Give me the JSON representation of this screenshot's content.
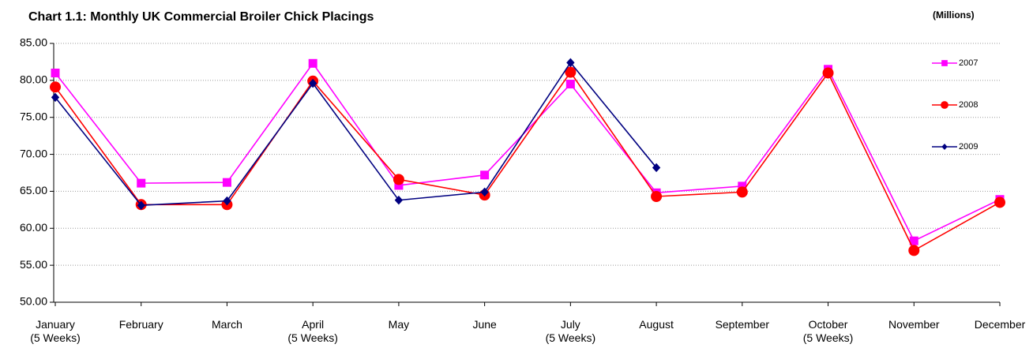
{
  "chart_data": {
    "type": "line",
    "title": "Chart 1.1: Monthly UK Commercial Broiler Chick Placings",
    "units_label": "(Millions)",
    "categories": [
      "January\n(5 Weeks)",
      "February",
      "March",
      "April\n(5 Weeks)",
      "May",
      "June",
      "July\n(5 Weeks)",
      "August",
      "September",
      "October\n(5 Weeks)",
      "November",
      "December"
    ],
    "series": [
      {
        "name": "2007",
        "color": "#ff00ff",
        "marker": "square",
        "values": [
          81.0,
          66.1,
          66.2,
          82.3,
          65.8,
          67.2,
          79.5,
          64.8,
          65.7,
          81.5,
          58.3,
          63.9
        ]
      },
      {
        "name": "2008",
        "color": "#ff0000",
        "marker": "circle",
        "values": [
          79.1,
          63.2,
          63.2,
          79.9,
          66.6,
          64.5,
          81.1,
          64.3,
          64.9,
          81.0,
          57.0,
          63.5
        ]
      },
      {
        "name": "2009",
        "color": "#000080",
        "marker": "diamond",
        "values": [
          77.7,
          63.1,
          63.7,
          79.6,
          63.8,
          64.9,
          82.4,
          68.2,
          null,
          null,
          null,
          null
        ]
      }
    ],
    "ylim": [
      50,
      85
    ],
    "yticks": [
      {
        "value": 50,
        "label": "50.00"
      },
      {
        "value": 55,
        "label": "55.00"
      },
      {
        "value": 60,
        "label": "60.00"
      },
      {
        "value": 65,
        "label": "65.00"
      },
      {
        "value": 70,
        "label": "70.00"
      },
      {
        "value": 75,
        "label": "75.00"
      },
      {
        "value": 80,
        "label": "80.00"
      },
      {
        "value": 85,
        "label": "85.00"
      }
    ],
    "grid": true,
    "legend": "right"
  }
}
